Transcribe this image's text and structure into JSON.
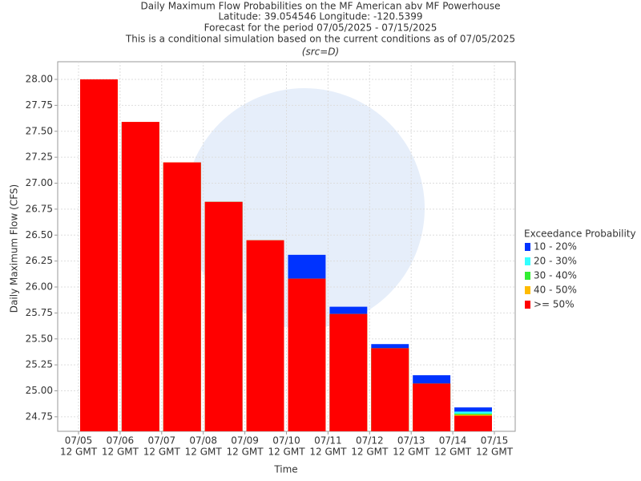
{
  "chart_data": {
    "type": "bar",
    "title": "Daily Maximum Flow Probabilities on the MF American abv MF Powerhouse",
    "subtitles": [
      "Latitude: 39.054546 Longitude: -120.5399",
      "Forecast for the period 07/05/2025 - 07/15/2025",
      "This is a conditional simulation based on the current conditions as of 07/05/2025"
    ],
    "source_note": "(src=D)",
    "y_label": "Daily Maximum Flow (CFS)",
    "x_label": "Time",
    "legend_title": "Exceedance Probability",
    "xticks": [
      "07/05",
      "07/06",
      "07/07",
      "07/08",
      "07/09",
      "07/10",
      "07/11",
      "07/12",
      "07/13",
      "07/14",
      "07/15"
    ],
    "xtick_sublabel": "12 GMT",
    "ylim": [
      24.61,
      28.17
    ],
    "yticks": [
      24.75,
      {
        "value": 25,
        "label": "25.00"
      },
      25.25,
      {
        "value": 25.5,
        "label": "25.50"
      },
      25.75,
      {
        "value": 26,
        "label": "26.00"
      },
      26.25,
      {
        "value": 26.5,
        "label": "26.50"
      },
      26.75,
      {
        "value": 27,
        "label": "27.00"
      },
      27.25,
      {
        "value": 27.5,
        "label": "27.50"
      },
      27.75,
      {
        "value": 28,
        "label": "28.00"
      }
    ],
    "grid": true,
    "series": [
      {
        "name": "10 - 20%",
        "color": "#0033ff",
        "values": [
          28.0,
          27.59,
          27.2,
          26.82,
          26.45,
          26.31,
          25.81,
          25.45,
          25.15,
          24.84
        ]
      },
      {
        "name": "20 - 30%",
        "color": "#33ffff",
        "values": [
          28.0,
          27.59,
          27.2,
          26.82,
          26.45,
          26.08,
          25.74,
          25.41,
          25.07,
          24.8
        ]
      },
      {
        "name": "30 - 40%",
        "color": "#33ee33",
        "values": [
          28.0,
          27.59,
          27.2,
          26.82,
          26.45,
          26.08,
          25.74,
          25.41,
          25.07,
          24.78
        ]
      },
      {
        "name": "40 - 50%",
        "color": "#ffbb00",
        "values": [
          28.0,
          27.59,
          27.2,
          26.82,
          26.45,
          26.08,
          25.74,
          25.41,
          25.07,
          24.77
        ]
      },
      {
        "name": ">= 50%",
        "color": "#ff0000",
        "values": [
          28.0,
          27.59,
          27.2,
          26.82,
          26.45,
          26.08,
          25.74,
          25.41,
          25.07,
          24.76
        ]
      }
    ]
  }
}
